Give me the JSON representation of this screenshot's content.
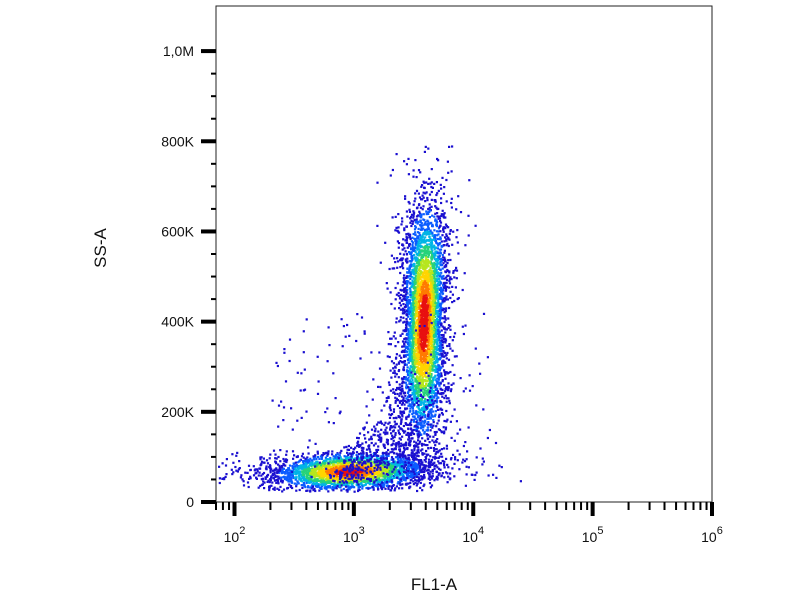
{
  "chart_data": {
    "type": "scatter",
    "subtype": "flow-cytometry density dot plot",
    "xlabel": "FL1-A",
    "ylabel": "SS-A",
    "x_scale": "log",
    "xlim": [
      70,
      1000000
    ],
    "ylim": [
      0,
      1100000
    ],
    "x_ticks": [
      {
        "value": 100,
        "base": "10",
        "exp": "2"
      },
      {
        "value": 1000,
        "base": "10",
        "exp": "3"
      },
      {
        "value": 10000,
        "base": "10",
        "exp": "4"
      },
      {
        "value": 100000,
        "base": "10",
        "exp": "5"
      },
      {
        "value": 1000000,
        "base": "10",
        "exp": "6"
      }
    ],
    "y_ticks": [
      {
        "value": 0,
        "label": "0"
      },
      {
        "value": 200000,
        "label": "200K"
      },
      {
        "value": 400000,
        "label": "400K"
      },
      {
        "value": 600000,
        "label": "600K"
      },
      {
        "value": 800000,
        "label": "800K"
      },
      {
        "value": 1000000,
        "label": "1,0M"
      }
    ],
    "color_scale": [
      "#1a0fd0",
      "#0a5cff",
      "#00b4e6",
      "#27d27a",
      "#b6e61e",
      "#ffd400",
      "#ff7a00",
      "#e81010"
    ],
    "populations": [
      {
        "center_x": 3800,
        "center_y": 400000,
        "x_spread_log10": 0.085,
        "y_spread": 130000,
        "density": "high"
      },
      {
        "center_x": 900,
        "center_y": 70000,
        "x_spread_log10": 0.38,
        "y_spread": 20000,
        "density": "medium"
      }
    ],
    "grid": false,
    "legend": "none"
  }
}
